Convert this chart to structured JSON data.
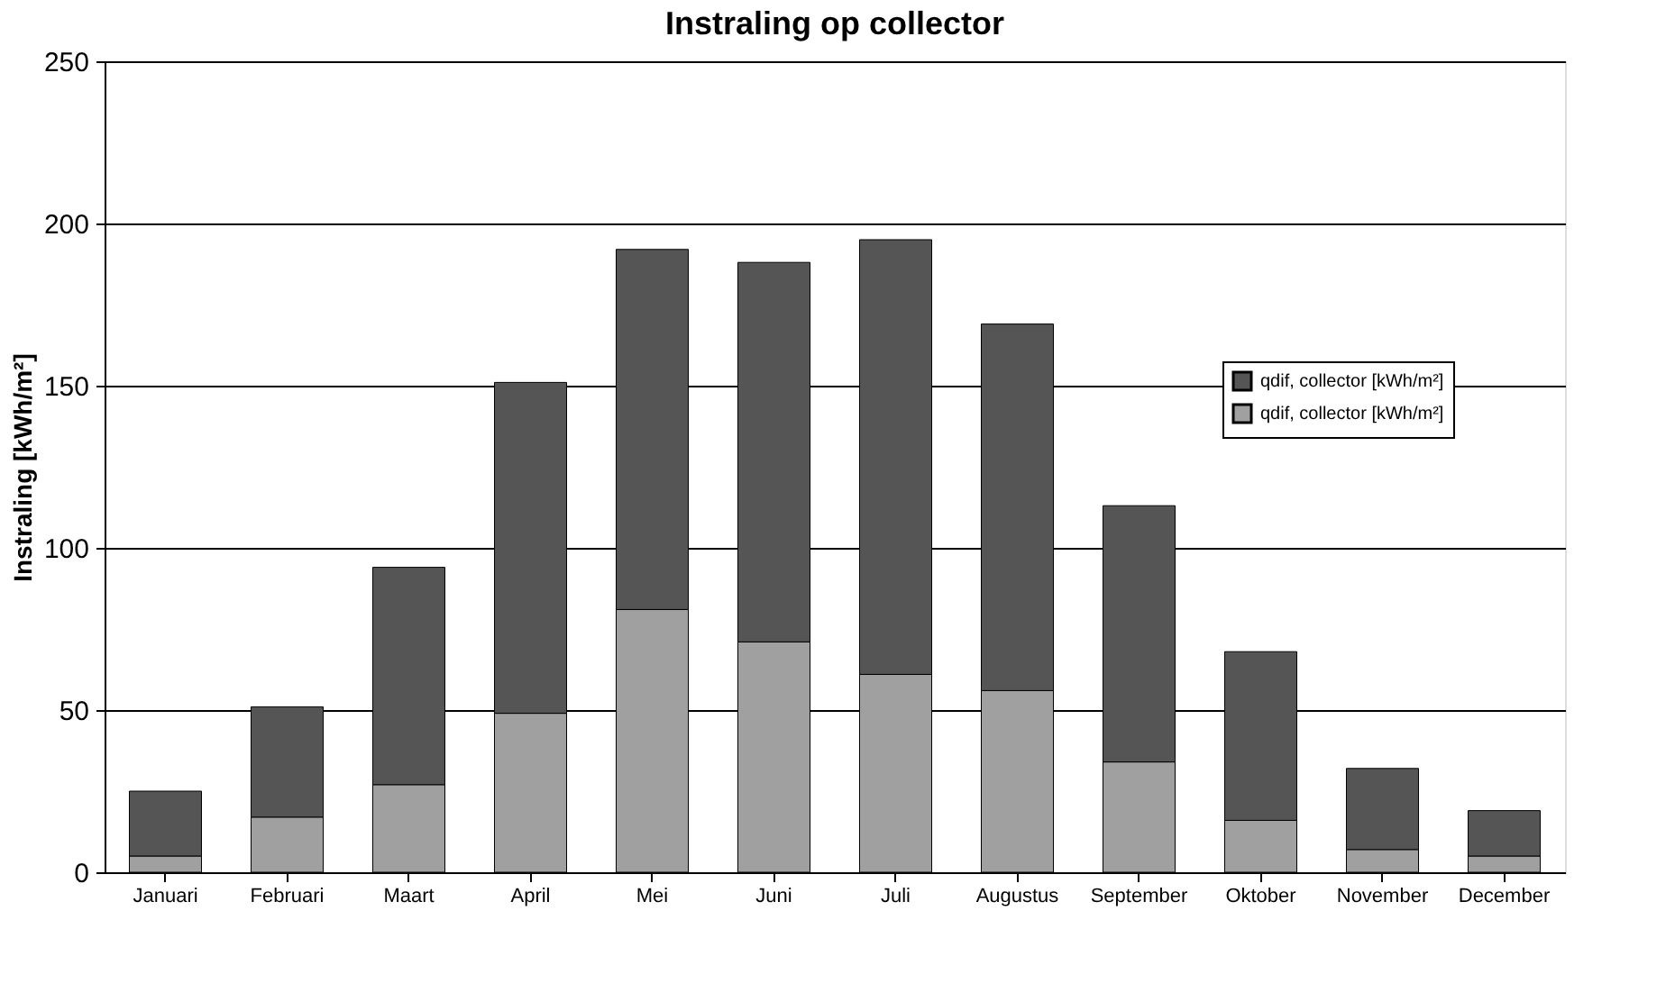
{
  "chart_data": {
    "type": "bar",
    "title": "Instraling op collector",
    "ylabel": "Instraling [kWh/m²]",
    "categories": [
      "Januari",
      "Februari",
      "Maart",
      "April",
      "Mei",
      "Juni",
      "Juli",
      "Augustus",
      "September",
      "Oktober",
      "November",
      "December"
    ],
    "stacked": true,
    "series": [
      {
        "name": "qdif, collector [kWh/m²]",
        "color": "#a0a0a0",
        "values": [
          5,
          17,
          27,
          49,
          81,
          71,
          61,
          56,
          34,
          16,
          7,
          5
        ]
      },
      {
        "name": "qdif, collector [kWh/m²]",
        "color": "#555555",
        "values": [
          20,
          34,
          67,
          102,
          111,
          117,
          134,
          113,
          79,
          52,
          25,
          14
        ]
      }
    ],
    "ylim": [
      0,
      250
    ],
    "yticks": [
      0,
      50,
      100,
      150,
      200,
      250
    ],
    "grid": "y",
    "legend": "right"
  }
}
